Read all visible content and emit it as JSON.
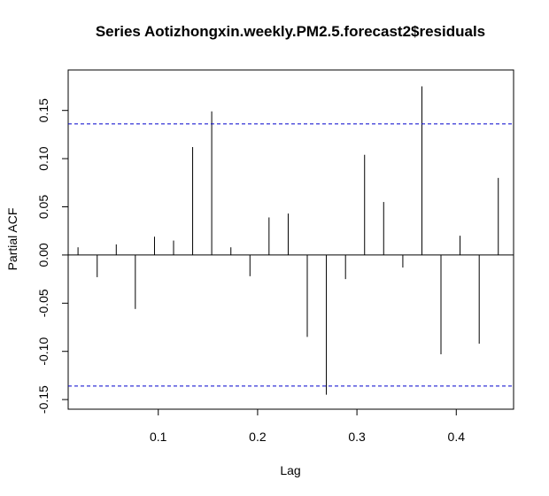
{
  "chart_data": {
    "type": "bar",
    "title": "Series  Aotizhongxin.weekly.PM2.5.forecast2$residuals",
    "xlabel": "Lag",
    "ylabel": "Partial ACF",
    "xlim": [
      0.0093,
      0.4577
    ],
    "ylim": [
      -0.16,
      0.192
    ],
    "xticks": [
      0.1,
      0.2,
      0.3,
      0.4
    ],
    "xtick_labels": [
      "0.1",
      "0.2",
      "0.3",
      "0.4"
    ],
    "yticks": [
      -0.15,
      -0.1,
      -0.05,
      0.0,
      0.05,
      0.1,
      0.15
    ],
    "ytick_labels": [
      "-0.15",
      "-0.10",
      "-0.05",
      "0.00",
      "0.05",
      "0.10",
      "0.15"
    ],
    "lag": [
      0.0192,
      0.0385,
      0.0577,
      0.0769,
      0.0962,
      0.1154,
      0.1346,
      0.1538,
      0.1731,
      0.1923,
      0.2115,
      0.2308,
      0.25,
      0.2692,
      0.2885,
      0.3077,
      0.3269,
      0.3462,
      0.3654,
      0.3846,
      0.4038,
      0.4231,
      0.4423
    ],
    "values": [
      0.008,
      -0.023,
      0.011,
      -0.056,
      0.019,
      0.015,
      0.112,
      0.149,
      0.008,
      -0.022,
      0.039,
      0.043,
      -0.085,
      -0.145,
      -0.025,
      0.104,
      0.055,
      -0.013,
      0.175,
      -0.103,
      0.02,
      -0.092,
      0.08
    ],
    "confidence_limit": 0.136,
    "confidence_color": "#0000cc",
    "grid": false
  }
}
